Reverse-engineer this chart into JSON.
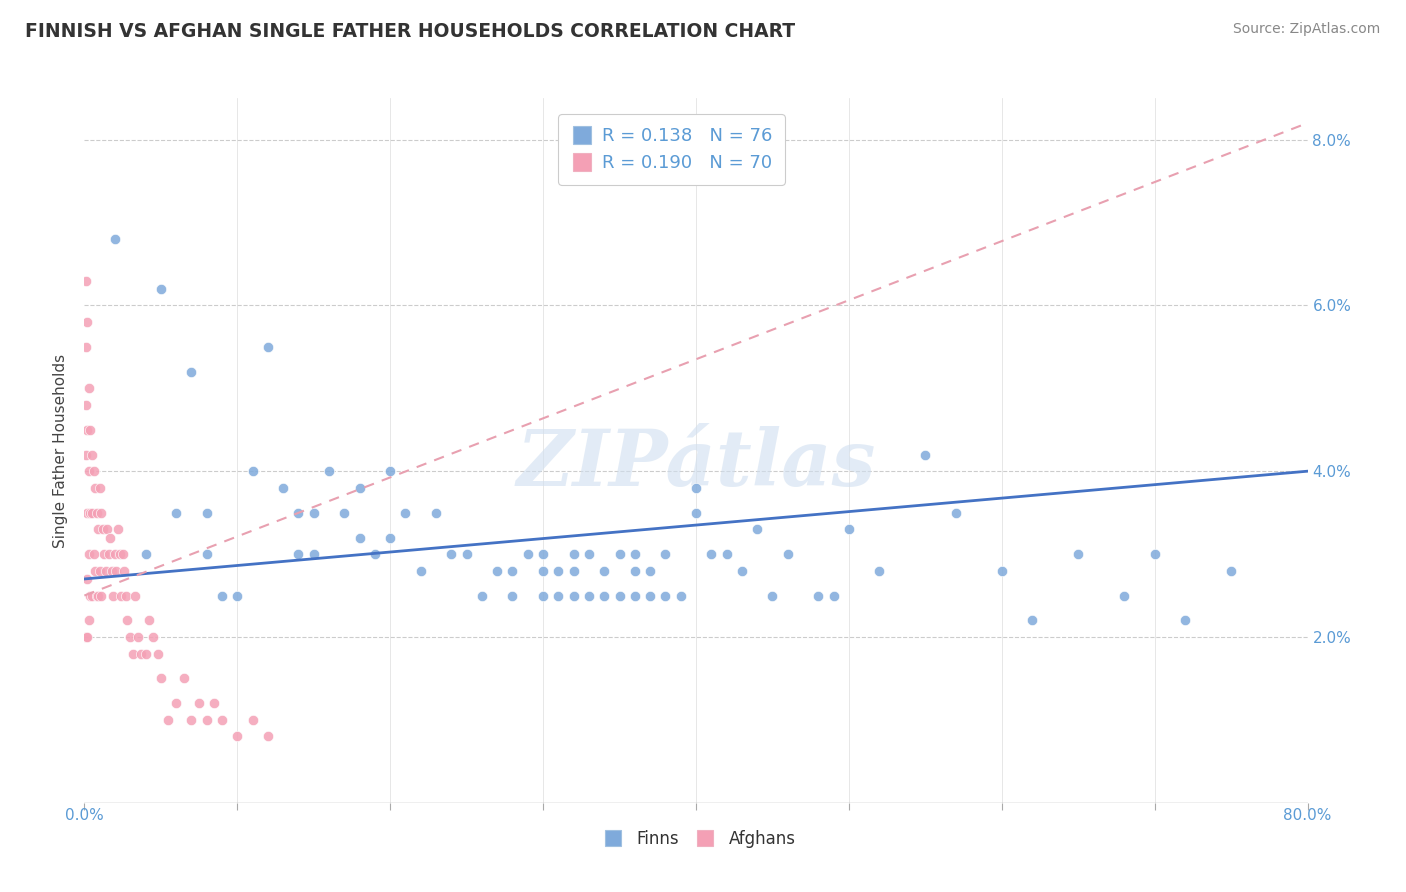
{
  "title": "FINNISH VS AFGHAN SINGLE FATHER HOUSEHOLDS CORRELATION CHART",
  "source": "Source: ZipAtlas.com",
  "ylabel": "Single Father Households",
  "xmin": 0.0,
  "xmax": 0.8,
  "ymin": 0.0,
  "ymax": 0.085,
  "ytick_vals": [
    0.02,
    0.04,
    0.06,
    0.08
  ],
  "ytick_labels": [
    "2.0%",
    "4.0%",
    "6.0%",
    "8.0%"
  ],
  "finns_R": 0.138,
  "finns_N": 76,
  "afghans_R": 0.19,
  "afghans_N": 70,
  "finns_color": "#7faadb",
  "afghans_color": "#f4a0b5",
  "trendline_finns_color": "#4472c4",
  "trendline_afghans_color": "#f4a0b5",
  "watermark": "ZIPátlas",
  "finns_x": [
    0.02,
    0.04,
    0.05,
    0.06,
    0.07,
    0.08,
    0.08,
    0.09,
    0.1,
    0.11,
    0.12,
    0.13,
    0.14,
    0.14,
    0.15,
    0.15,
    0.16,
    0.17,
    0.18,
    0.18,
    0.19,
    0.2,
    0.2,
    0.21,
    0.22,
    0.23,
    0.24,
    0.25,
    0.26,
    0.27,
    0.28,
    0.28,
    0.29,
    0.3,
    0.3,
    0.3,
    0.31,
    0.31,
    0.32,
    0.32,
    0.32,
    0.33,
    0.33,
    0.34,
    0.34,
    0.35,
    0.35,
    0.36,
    0.36,
    0.36,
    0.37,
    0.37,
    0.38,
    0.38,
    0.39,
    0.4,
    0.4,
    0.41,
    0.42,
    0.43,
    0.44,
    0.45,
    0.46,
    0.48,
    0.49,
    0.5,
    0.52,
    0.55,
    0.57,
    0.6,
    0.62,
    0.65,
    0.68,
    0.7,
    0.72,
    0.75
  ],
  "finns_y": [
    0.068,
    0.03,
    0.062,
    0.035,
    0.052,
    0.03,
    0.035,
    0.025,
    0.025,
    0.04,
    0.055,
    0.038,
    0.035,
    0.03,
    0.035,
    0.03,
    0.04,
    0.035,
    0.032,
    0.038,
    0.03,
    0.04,
    0.032,
    0.035,
    0.028,
    0.035,
    0.03,
    0.03,
    0.025,
    0.028,
    0.028,
    0.025,
    0.03,
    0.03,
    0.028,
    0.025,
    0.028,
    0.025,
    0.03,
    0.028,
    0.025,
    0.03,
    0.025,
    0.028,
    0.025,
    0.03,
    0.025,
    0.03,
    0.028,
    0.025,
    0.028,
    0.025,
    0.03,
    0.025,
    0.025,
    0.035,
    0.038,
    0.03,
    0.03,
    0.028,
    0.033,
    0.025,
    0.03,
    0.025,
    0.025,
    0.033,
    0.028,
    0.042,
    0.035,
    0.028,
    0.022,
    0.03,
    0.025,
    0.03,
    0.022,
    0.028
  ],
  "afghans_x": [
    0.001,
    0.001,
    0.001,
    0.001,
    0.001,
    0.002,
    0.002,
    0.002,
    0.002,
    0.002,
    0.003,
    0.003,
    0.003,
    0.003,
    0.004,
    0.004,
    0.004,
    0.005,
    0.005,
    0.005,
    0.006,
    0.006,
    0.007,
    0.007,
    0.008,
    0.008,
    0.009,
    0.009,
    0.01,
    0.01,
    0.011,
    0.011,
    0.012,
    0.013,
    0.014,
    0.015,
    0.016,
    0.017,
    0.018,
    0.019,
    0.02,
    0.021,
    0.022,
    0.023,
    0.024,
    0.025,
    0.026,
    0.027,
    0.028,
    0.03,
    0.032,
    0.033,
    0.035,
    0.037,
    0.04,
    0.042,
    0.045,
    0.048,
    0.05,
    0.055,
    0.06,
    0.065,
    0.07,
    0.075,
    0.08,
    0.085,
    0.09,
    0.1,
    0.11,
    0.12
  ],
  "afghans_y": [
    0.063,
    0.055,
    0.048,
    0.042,
    0.02,
    0.058,
    0.045,
    0.035,
    0.027,
    0.02,
    0.05,
    0.04,
    0.03,
    0.022,
    0.045,
    0.035,
    0.025,
    0.042,
    0.035,
    0.025,
    0.04,
    0.03,
    0.038,
    0.028,
    0.035,
    0.025,
    0.033,
    0.025,
    0.038,
    0.028,
    0.035,
    0.025,
    0.033,
    0.03,
    0.028,
    0.033,
    0.03,
    0.032,
    0.028,
    0.025,
    0.03,
    0.028,
    0.033,
    0.03,
    0.025,
    0.03,
    0.028,
    0.025,
    0.022,
    0.02,
    0.018,
    0.025,
    0.02,
    0.018,
    0.018,
    0.022,
    0.02,
    0.018,
    0.015,
    0.01,
    0.012,
    0.015,
    0.01,
    0.012,
    0.01,
    0.012,
    0.01,
    0.008,
    0.01,
    0.008
  ]
}
